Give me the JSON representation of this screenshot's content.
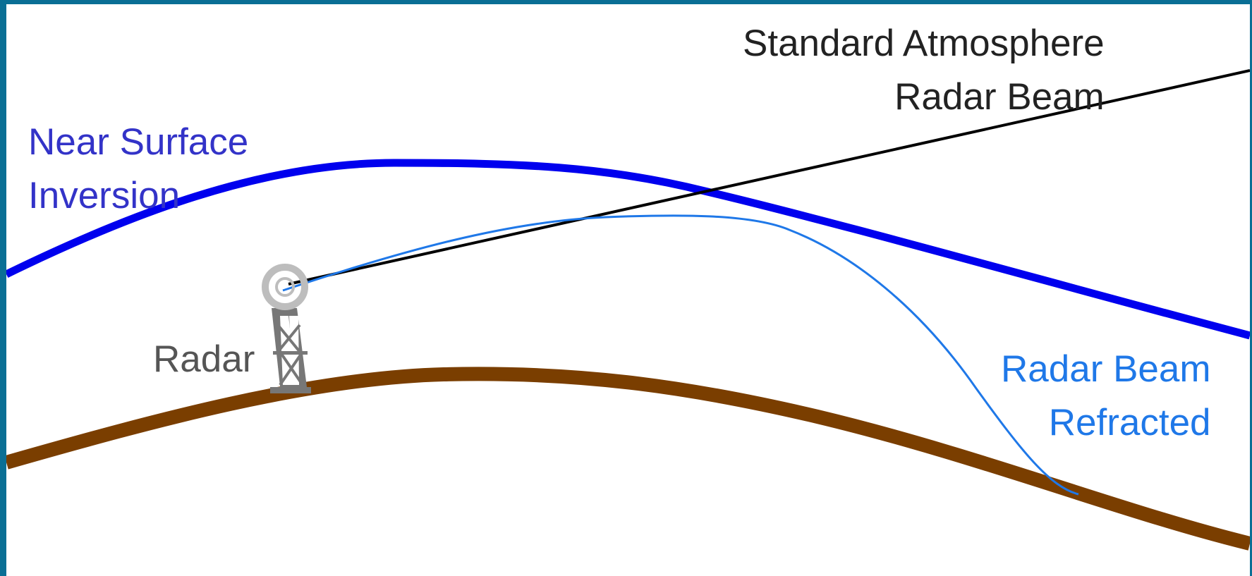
{
  "colors": {
    "outer_border": "#0a6f95",
    "background": "#ffffff",
    "inversion_line": "#0000ee",
    "inversion_text": "#3333c8",
    "standard_beam": "#000000",
    "standard_text": "#222222",
    "refracted_beam": "#1f78e8",
    "refracted_text": "#1f78e8",
    "ground": "#7a3e00",
    "radar_text": "#555555",
    "radar_tower": "#777777",
    "radar_dish": "#bdbdbd"
  },
  "labels": {
    "inversion": [
      "Near Surface",
      "Inversion"
    ],
    "standard": [
      "Standard Atmosphere",
      "Radar Beam"
    ],
    "radar": "Radar",
    "refracted": [
      "Radar Beam",
      "Refracted"
    ]
  },
  "icons": {
    "radar": "radar-tower-icon"
  }
}
